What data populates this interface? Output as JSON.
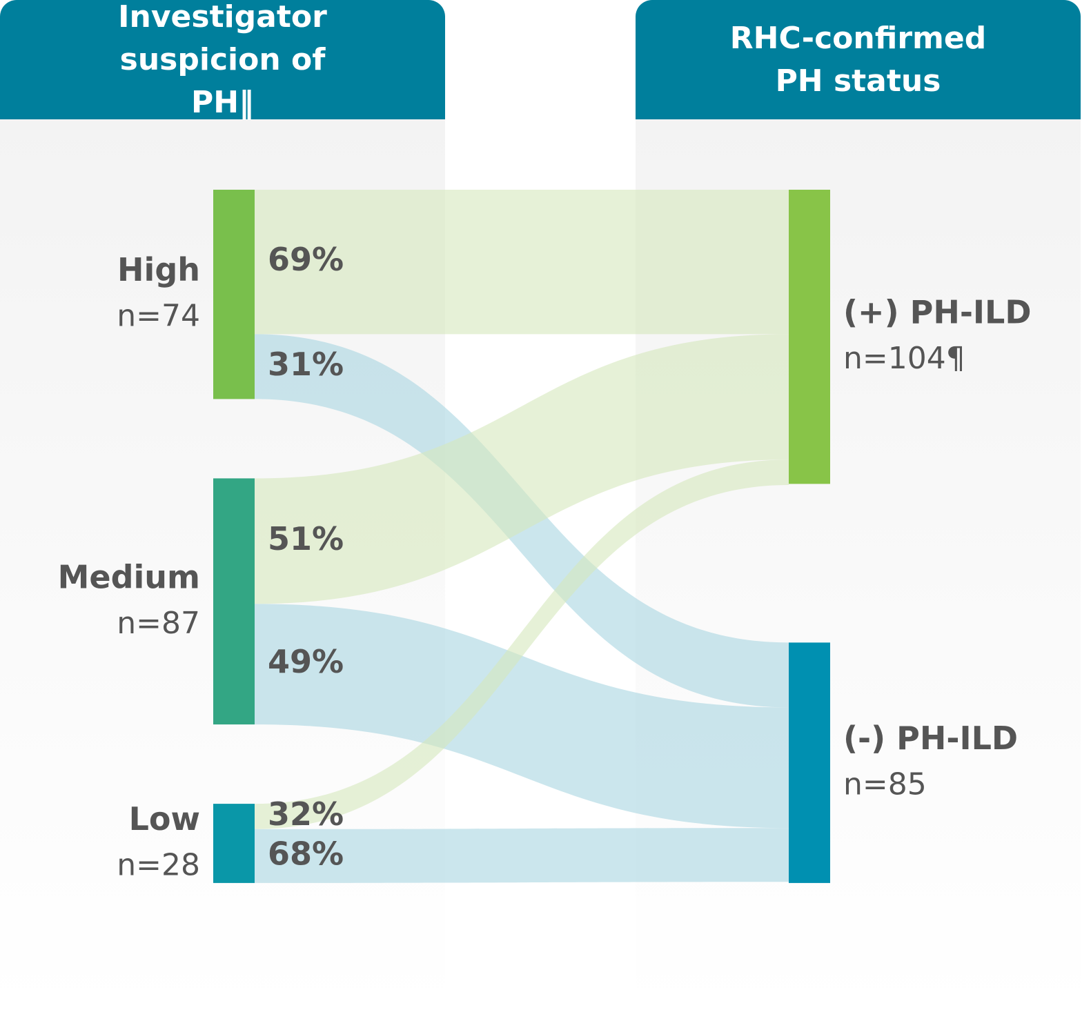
{
  "chart_data": {
    "type": "sankey",
    "columns": [
      "Investigator suspicion of PH‖",
      "RHC-confirmed PH status"
    ],
    "source_nodes": [
      {
        "name": "High",
        "value": 74,
        "value_label": "n=74",
        "color": "#79bf4c"
      },
      {
        "name": "Medium",
        "value": 87,
        "value_label": "n=87",
        "color": "#33a684"
      },
      {
        "name": "Low",
        "value": 28,
        "value_label": "n=28",
        "color": "#0a97a8"
      }
    ],
    "target_nodes": [
      {
        "name": "(+) PH-ILD",
        "value": 104,
        "value_label": "n=104¶",
        "color": "#88c448"
      },
      {
        "name": "(-) PH-ILD",
        "value": 85,
        "value_label": "n=85",
        "color": "#0090b1"
      }
    ],
    "links": [
      {
        "source": 0,
        "target": 0,
        "value": 69,
        "value_label": "69%",
        "color": "#d6e8bd"
      },
      {
        "source": 0,
        "target": 1,
        "value": 31,
        "value_label": "31%",
        "color": "#a9d6e1"
      },
      {
        "source": 1,
        "target": 0,
        "value": 51,
        "value_label": "51%",
        "color": "#d6e8bd"
      },
      {
        "source": 1,
        "target": 1,
        "value": 49,
        "value_label": "49%",
        "color": "#a9d6e1"
      },
      {
        "source": 2,
        "target": 0,
        "value": 32,
        "value_label": "32%",
        "color": "#d6e8bd"
      },
      {
        "source": 2,
        "target": 1,
        "value": 68,
        "value_label": "68%",
        "color": "#a9d6e1"
      }
    ]
  }
}
